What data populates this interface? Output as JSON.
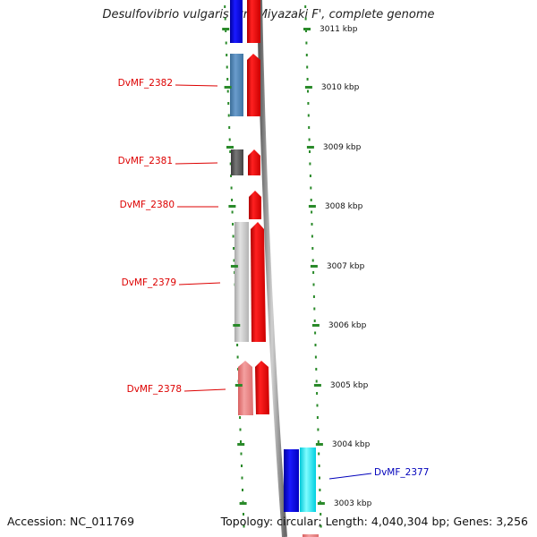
{
  "header": {
    "title": "Desulfovibrio vulgaris str. 'Miyazaki F', complete genome"
  },
  "footer": {
    "accession": "Accession: NC_011769",
    "topology": "Topology: circular; Length: 4,040,304 bp; Genes: 3,256"
  },
  "ticks": [
    "3011 kbp",
    "3010 kbp",
    "3009 kbp",
    "3008 kbp",
    "3007 kbp",
    "3006 kbp",
    "3005 kbp",
    "3004 kbp",
    "3003 kbp"
  ],
  "genes": [
    {
      "name": "DvMF_2382",
      "label_color": "#dd0000"
    },
    {
      "name": "DvMF_2381",
      "label_color": "#dd0000"
    },
    {
      "name": "DvMF_2380",
      "label_color": "#dd0000"
    },
    {
      "name": "DvMF_2379",
      "label_color": "#dd0000"
    },
    {
      "name": "DvMF_2378",
      "label_color": "#dd0000"
    },
    {
      "name": "DvMF_2377",
      "label_color": "#0000bb"
    }
  ],
  "colors": {
    "forward_strand": "#ff0000",
    "reverse_strand": "#0000ff",
    "tick_marks": "#2a8a2a",
    "backbone": "#888888"
  }
}
